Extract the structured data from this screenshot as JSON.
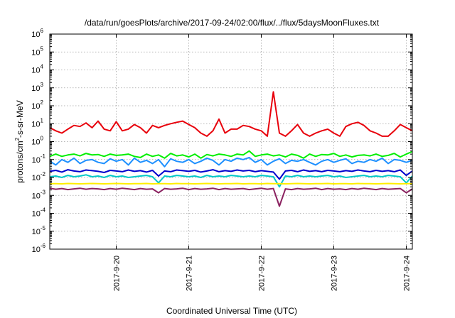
{
  "chart_data": {
    "type": "line",
    "title": "/data/run/goesPlots/archive/2017-09-24/02:00/flux/../flux/5daysMoonFluxes.txt",
    "xlabel": "Coordinated Universal Time (UTC)",
    "ylabel": {
      "main": "protons/cm",
      "sup": "2",
      "rest": "-s-sr-MeV"
    },
    "y_scale": "log",
    "ylim": [
      1e-06,
      1000000.0
    ],
    "y_ticks": [
      {
        "base": "10",
        "exp": "-6",
        "value": 1e-06
      },
      {
        "base": "10",
        "exp": "-5",
        "value": 1e-05
      },
      {
        "base": "10",
        "exp": "-4",
        "value": 0.0001
      },
      {
        "base": "10",
        "exp": "-3",
        "value": 0.001
      },
      {
        "base": "10",
        "exp": "-2",
        "value": 0.01
      },
      {
        "base": "10",
        "exp": "-1",
        "value": 0.1
      },
      {
        "base": "10",
        "exp": "0",
        "value": 1
      },
      {
        "base": "10",
        "exp": "1",
        "value": 10
      },
      {
        "base": "10",
        "exp": "2",
        "value": 100
      },
      {
        "base": "10",
        "exp": "3",
        "value": 1000
      },
      {
        "base": "10",
        "exp": "4",
        "value": 10000
      },
      {
        "base": "10",
        "exp": "5",
        "value": 100000
      },
      {
        "base": "10",
        "exp": "6",
        "value": 1000000
      }
    ],
    "xlim": [
      "2017-09-19T02:00",
      "2017-09-24T02:00"
    ],
    "x_ticks": [
      {
        "label": "2017-9-20",
        "value": "2017-09-20T00:00"
      },
      {
        "label": "2017-9-21",
        "value": "2017-09-21T00:00"
      },
      {
        "label": "2017-9-22",
        "value": "2017-09-22T00:00"
      },
      {
        "label": "2017-9-23",
        "value": "2017-09-23T00:00"
      },
      {
        "label": "2017-9-24",
        "value": "2017-09-24T00:00"
      }
    ],
    "grid": true,
    "x": [
      "2017-09-19T02:00",
      "2017-09-19T04:00",
      "2017-09-19T06:00",
      "2017-09-19T08:00",
      "2017-09-19T10:00",
      "2017-09-19T12:00",
      "2017-09-19T14:00",
      "2017-09-19T16:00",
      "2017-09-19T18:00",
      "2017-09-19T20:00",
      "2017-09-19T22:00",
      "2017-09-20T00:00",
      "2017-09-20T02:00",
      "2017-09-20T04:00",
      "2017-09-20T06:00",
      "2017-09-20T08:00",
      "2017-09-20T10:00",
      "2017-09-20T12:00",
      "2017-09-20T14:00",
      "2017-09-20T16:00",
      "2017-09-20T18:00",
      "2017-09-20T20:00",
      "2017-09-20T22:00",
      "2017-09-21T00:00",
      "2017-09-21T02:00",
      "2017-09-21T04:00",
      "2017-09-21T06:00",
      "2017-09-21T08:00",
      "2017-09-21T10:00",
      "2017-09-21T12:00",
      "2017-09-21T14:00",
      "2017-09-21T16:00",
      "2017-09-21T18:00",
      "2017-09-21T20:00",
      "2017-09-21T22:00",
      "2017-09-22T00:00",
      "2017-09-22T02:00",
      "2017-09-22T04:00",
      "2017-09-22T06:00",
      "2017-09-22T08:00",
      "2017-09-22T10:00",
      "2017-09-22T12:00",
      "2017-09-22T14:00",
      "2017-09-22T16:00",
      "2017-09-22T18:00",
      "2017-09-22T20:00",
      "2017-09-22T22:00",
      "2017-09-23T00:00",
      "2017-09-23T02:00",
      "2017-09-23T04:00",
      "2017-09-23T06:00",
      "2017-09-23T08:00",
      "2017-09-23T10:00",
      "2017-09-23T12:00",
      "2017-09-23T14:00",
      "2017-09-23T16:00",
      "2017-09-23T18:00",
      "2017-09-23T20:00",
      "2017-09-23T22:00",
      "2017-09-24T00:00",
      "2017-09-24T02:00"
    ],
    "series": [
      {
        "color": "#e8000b",
        "values": [
          6,
          4,
          3,
          5,
          8,
          7,
          11,
          6,
          14,
          5,
          4,
          13,
          4,
          5,
          9,
          6,
          3,
          8,
          6,
          8,
          10,
          12,
          14,
          9,
          6,
          3,
          2,
          4,
          18,
          3,
          5,
          5,
          8,
          7,
          5,
          4,
          2,
          600,
          3,
          2,
          4,
          9,
          3,
          2,
          3,
          4,
          5,
          3,
          2,
          7,
          10,
          12,
          8,
          4,
          3,
          2,
          2,
          4,
          9,
          6,
          4
        ]
      },
      {
        "color": "#00ee00",
        "values": [
          0.15,
          0.2,
          0.15,
          0.18,
          0.2,
          0.16,
          0.22,
          0.18,
          0.19,
          0.15,
          0.2,
          0.17,
          0.18,
          0.2,
          0.15,
          0.13,
          0.2,
          0.15,
          0.18,
          0.12,
          0.22,
          0.16,
          0.18,
          0.14,
          0.2,
          0.12,
          0.19,
          0.16,
          0.2,
          0.18,
          0.15,
          0.2,
          0.18,
          0.3,
          0.15,
          0.18,
          0.2,
          0.16,
          0.18,
          0.14,
          0.2,
          0.17,
          0.12,
          0.2,
          0.15,
          0.19,
          0.18,
          0.22,
          0.15,
          0.18,
          0.14,
          0.17,
          0.18,
          0.16,
          0.2,
          0.15,
          0.17,
          0.22,
          0.14,
          0.2,
          0.28
        ]
      },
      {
        "color": "#1e90ff",
        "values": [
          0.08,
          0.05,
          0.1,
          0.07,
          0.12,
          0.06,
          0.09,
          0.1,
          0.07,
          0.06,
          0.11,
          0.08,
          0.1,
          0.05,
          0.12,
          0.07,
          0.09,
          0.06,
          0.1,
          0.04,
          0.11,
          0.08,
          0.07,
          0.1,
          0.06,
          0.08,
          0.12,
          0.09,
          0.05,
          0.1,
          0.08,
          0.12,
          0.1,
          0.13,
          0.07,
          0.1,
          0.05,
          0.08,
          0.11,
          0.06,
          0.09,
          0.08,
          0.1,
          0.07,
          0.05,
          0.08,
          0.1,
          0.07,
          0.09,
          0.11,
          0.06,
          0.08,
          0.07,
          0.1,
          0.08,
          0.12,
          0.06,
          0.1,
          0.09,
          0.07,
          0.09
        ]
      },
      {
        "color": "#00c8c8",
        "values": [
          0.011,
          0.012,
          0.01,
          0.013,
          0.011,
          0.012,
          0.014,
          0.011,
          0.012,
          0.01,
          0.013,
          0.011,
          0.012,
          0.01,
          0.011,
          0.012,
          0.013,
          0.011,
          0.005,
          0.012,
          0.011,
          0.013,
          0.012,
          0.011,
          0.012,
          0.01,
          0.013,
          0.011,
          0.012,
          0.011,
          0.013,
          0.012,
          0.011,
          0.012,
          0.011,
          0.013,
          0.012,
          0.011,
          0.003,
          0.012,
          0.011,
          0.013,
          0.011,
          0.012,
          0.011,
          0.012,
          0.013,
          0.011,
          0.012,
          0.01,
          0.011,
          0.012,
          0.013,
          0.011,
          0.012,
          0.011,
          0.013,
          0.012,
          0.011,
          0.005,
          0.012
        ]
      },
      {
        "color": "#0000cd",
        "values": [
          0.022,
          0.025,
          0.02,
          0.027,
          0.023,
          0.021,
          0.026,
          0.024,
          0.022,
          0.019,
          0.025,
          0.023,
          0.021,
          0.026,
          0.022,
          0.024,
          0.02,
          0.025,
          0.012,
          0.023,
          0.021,
          0.026,
          0.024,
          0.022,
          0.025,
          0.02,
          0.023,
          0.027,
          0.021,
          0.024,
          0.022,
          0.026,
          0.023,
          0.025,
          0.021,
          0.024,
          0.022,
          0.02,
          0.008,
          0.023,
          0.025,
          0.021,
          0.026,
          0.022,
          0.024,
          0.021,
          0.025,
          0.023,
          0.021,
          0.024,
          0.022,
          0.026,
          0.023,
          0.021,
          0.025,
          0.022,
          0.024,
          0.021,
          0.026,
          0.013,
          0.023
        ]
      },
      {
        "color": "#ffee00",
        "values": [
          0.0045,
          0.0045,
          0.0044,
          0.0046,
          0.0045,
          0.0044,
          0.0045,
          0.0046,
          0.0045,
          0.0044,
          0.0045,
          0.0046,
          0.0045,
          0.0044,
          0.0045,
          0.0045,
          0.0046,
          0.0044,
          0.0045,
          0.0045,
          0.0044,
          0.0046,
          0.0045,
          0.0045,
          0.0044,
          0.0045,
          0.0046,
          0.0045,
          0.0044,
          0.0045,
          0.0045,
          0.0046,
          0.0044,
          0.0045,
          0.0045,
          0.0044,
          0.0046,
          0.0045,
          0.0045,
          0.0044,
          0.0045,
          0.0046,
          0.0045,
          0.0044,
          0.0045,
          0.0045,
          0.0046,
          0.0044,
          0.0045,
          0.0045,
          0.0044,
          0.0046,
          0.0045,
          0.0045,
          0.0044,
          0.0045,
          0.0046,
          0.0045,
          0.0044,
          0.0045,
          0.0045
        ]
      },
      {
        "color": "#8b2260",
        "values": [
          0.0025,
          0.0022,
          0.0024,
          0.0021,
          0.0023,
          0.0025,
          0.0022,
          0.0024,
          0.0023,
          0.0021,
          0.0024,
          0.0022,
          0.0025,
          0.0023,
          0.0021,
          0.0024,
          0.0022,
          0.0023,
          0.0014,
          0.0024,
          0.0022,
          0.0023,
          0.0025,
          0.0021,
          0.0024,
          0.0022,
          0.0023,
          0.0025,
          0.0021,
          0.0024,
          0.0022,
          0.0023,
          0.0024,
          0.0021,
          0.0023,
          0.0025,
          0.0022,
          0.0024,
          0.00025,
          0.0023,
          0.0021,
          0.0024,
          0.0022,
          0.0023,
          0.0025,
          0.0021,
          0.0024,
          0.0022,
          0.0023,
          0.0021,
          0.0024,
          0.0022,
          0.0025,
          0.0023,
          0.0021,
          0.0024,
          0.0022,
          0.0023,
          0.0024,
          0.0014,
          0.0023
        ]
      }
    ]
  }
}
